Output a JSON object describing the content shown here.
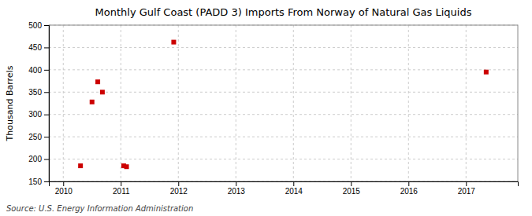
{
  "chart_data": {
    "type": "scatter",
    "title": "Monthly Gulf Coast (PADD 3) Imports From Norway of Natural Gas Liquids",
    "y_label": "Thousand Barrels",
    "annotation": "Source: U.S. Energy Information Administration",
    "x": [
      2010.3,
      2010.5,
      2010.6,
      2010.68,
      2011.05,
      2011.1,
      2011.92,
      2017.35
    ],
    "values": [
      185,
      328,
      373,
      350,
      185,
      183,
      462,
      395
    ],
    "color": "#cc0000",
    "marker": "square",
    "xlim": [
      2009.75,
      2017.9
    ],
    "ylim": [
      150,
      500
    ],
    "xticks": [
      2010,
      2011,
      2012,
      2013,
      2014,
      2015,
      2016,
      2017
    ],
    "yticks": [
      150,
      200,
      250,
      300,
      350,
      400,
      450,
      500
    ],
    "grid": true
  }
}
